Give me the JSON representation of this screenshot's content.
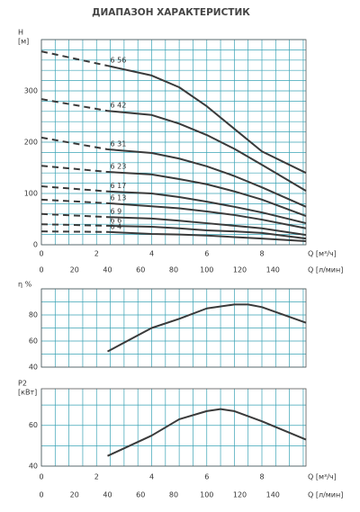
{
  "chart_data": [
    {
      "type": "line",
      "title": "ДИАПАЗОН ХАРАКТЕРИСТИК",
      "ylabel": "H",
      "yunit": "[м]",
      "xlabel": "Q [м³/ч]",
      "x2label": "Q [л/мин]",
      "x": [
        0,
        2.4,
        4,
        5,
        6,
        7,
        8,
        9.6
      ],
      "xlim": [
        0,
        9.6
      ],
      "xticks": [
        0,
        2,
        4,
        6,
        8
      ],
      "x2lim": [
        0,
        160
      ],
      "x2ticks": [
        0,
        20,
        40,
        60,
        80,
        100,
        120,
        140
      ],
      "ylim": [
        0,
        400
      ],
      "yticks": [
        0,
        100,
        200,
        300
      ],
      "minor_grid": {
        "x": 0.5,
        "y": 20
      },
      "grid_color": "#3aa3b5",
      "dashed_until": 2.4,
      "series": [
        {
          "name": "6 56",
          "color": "#3a3a3a",
          "values": [
            377,
            349,
            330,
            307,
            270,
            226,
            182,
            140
          ]
        },
        {
          "name": "6 42",
          "color": "#3a3a3a",
          "values": [
            284,
            261,
            253,
            236,
            214,
            187,
            156,
            105
          ]
        },
        {
          "name": "6 31",
          "color": "#3a3a3a",
          "values": [
            209,
            186,
            179,
            168,
            153,
            134,
            112,
            74
          ]
        },
        {
          "name": "6 23",
          "color": "#3a3a3a",
          "values": [
            154,
            142,
            137,
            128,
            118,
            104,
            88,
            56
          ]
        },
        {
          "name": "6 17",
          "color": "#3a3a3a",
          "values": [
            114,
            104,
            100,
            93,
            84,
            74,
            63,
            42
          ]
        },
        {
          "name": "6 13",
          "color": "#3a3a3a",
          "values": [
            88,
            81,
            75,
            71,
            65,
            58,
            49,
            32
          ]
        },
        {
          "name": "6 9",
          "color": "#3a3a3a",
          "values": [
            60,
            54,
            51,
            47,
            42,
            37,
            32,
            19
          ]
        },
        {
          "name": "6 6",
          "color": "#3a3a3a",
          "values": [
            40,
            37,
            35,
            32,
            28,
            26,
            23,
            12
          ]
        },
        {
          "name": "6 4",
          "color": "#3a3a3a",
          "values": [
            26,
            25,
            21,
            20,
            18,
            15,
            12,
            7
          ]
        }
      ]
    },
    {
      "type": "line",
      "ylabel": "η %",
      "x": [
        2.4,
        4,
        5,
        6,
        7,
        7.5,
        8,
        9.6
      ],
      "xlim": [
        0,
        9.6
      ],
      "ylim": [
        40,
        100
      ],
      "yticks": [
        40,
        60,
        80
      ],
      "minor_grid": {
        "x": 0.5,
        "y": 10
      },
      "grid_color": "#3aa3b5",
      "series": [
        {
          "color": "#3a3a3a",
          "values": [
            52,
            70,
            77,
            85,
            88,
            88,
            86,
            74
          ]
        }
      ]
    },
    {
      "type": "line",
      "ylabel": "P2",
      "yunit": "[кВт]",
      "xlabel": "Q [м³/ч]",
      "x2label": "Q [л/мин]",
      "x": [
        2.4,
        4,
        5,
        6,
        6.5,
        7,
        8,
        9.6
      ],
      "xlim": [
        0,
        9.6
      ],
      "xticks": [
        0,
        2,
        4,
        6,
        8
      ],
      "x2lim": [
        0,
        160
      ],
      "x2ticks": [
        0,
        20,
        40,
        60,
        80,
        100,
        120,
        140
      ],
      "ylim": [
        40,
        78
      ],
      "yticks": [
        40,
        60
      ],
      "minor_grid": {
        "x": 0.5,
        "y": 10
      },
      "grid_color": "#3aa3b5",
      "series": [
        {
          "color": "#3a3a3a",
          "values": [
            45,
            55,
            63,
            67,
            68,
            67,
            62,
            53
          ]
        }
      ]
    }
  ]
}
